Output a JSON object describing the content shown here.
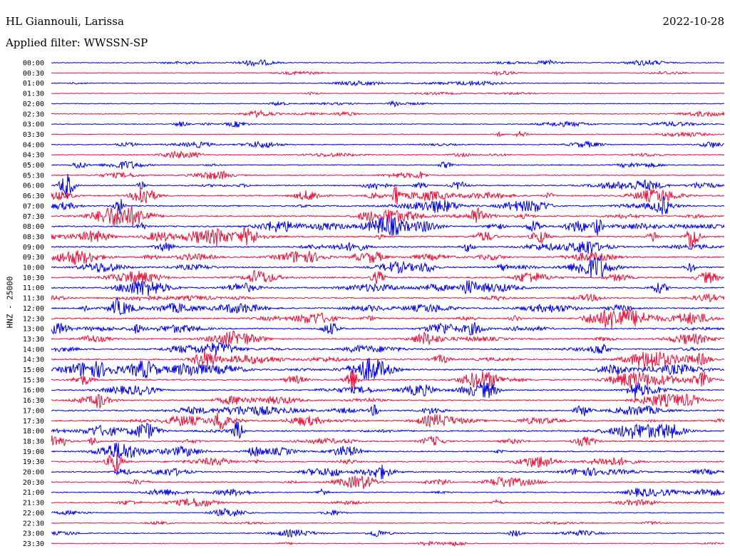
{
  "header": {
    "station": "HL Giannouli, Larissa",
    "date": "2022-10-28",
    "filter": "Applied filter: WWSSN-SP"
  },
  "chart_data": {
    "type": "line",
    "title": "HL Giannouli, Larissa",
    "ylabel": "HNZ - 25000",
    "xlabel": "",
    "grid": false,
    "legend": "none",
    "colors": [
      "#0000e6",
      "#e8113b"
    ],
    "rows": [
      "00:00",
      "00:30",
      "01:00",
      "01:30",
      "02:00",
      "02:30",
      "03:00",
      "03:30",
      "04:00",
      "04:30",
      "05:00",
      "05:30",
      "06:00",
      "06:30",
      "07:00",
      "07:30",
      "08:00",
      "08:30",
      "09:00",
      "09:30",
      "10:00",
      "10:30",
      "11:00",
      "11:30",
      "12:00",
      "12:30",
      "13:00",
      "13:30",
      "14:00",
      "14:30",
      "15:00",
      "15:30",
      "16:00",
      "16:30",
      "17:00",
      "17:30",
      "18:00",
      "18:30",
      "19:00",
      "19:30",
      "20:00",
      "20:30",
      "21:00",
      "21:30",
      "22:00",
      "22:30",
      "23:00",
      "23:30"
    ],
    "activity": [
      0.12,
      0.06,
      0.11,
      0.03,
      0.1,
      0.14,
      0.12,
      0.15,
      0.22,
      0.24,
      0.26,
      0.3,
      0.34,
      0.48,
      0.5,
      0.55,
      0.6,
      0.62,
      0.58,
      0.54,
      0.56,
      0.6,
      0.52,
      0.46,
      0.55,
      0.6,
      0.58,
      0.52,
      0.55,
      0.6,
      0.62,
      0.58,
      0.52,
      0.5,
      0.48,
      0.52,
      0.55,
      0.5,
      0.46,
      0.44,
      0.36,
      0.3,
      0.26,
      0.24,
      0.12,
      0.16,
      0.2,
      0.14
    ]
  }
}
